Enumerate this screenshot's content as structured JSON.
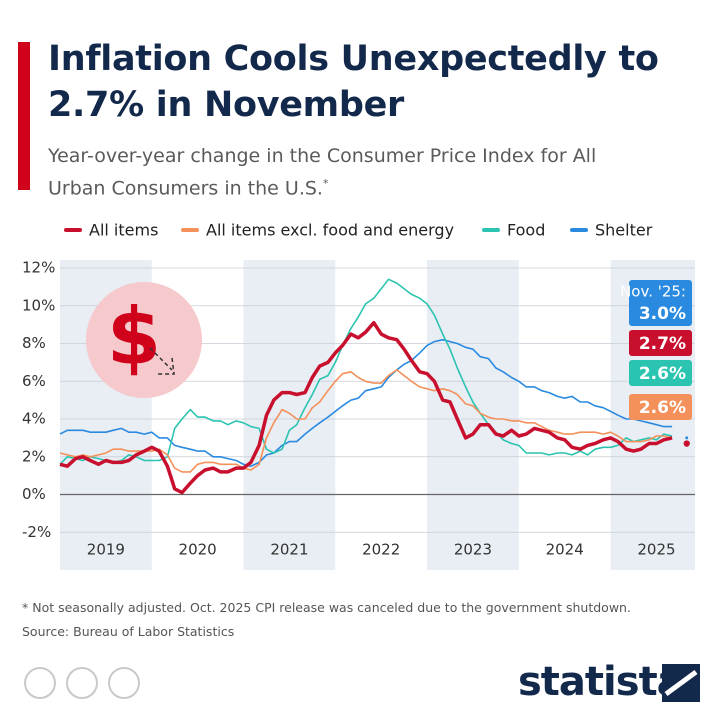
{
  "chart_data": {
    "type": "line",
    "title": "Inflation Cools Unexpectedly to 2.7% in November",
    "subtitle": "Year-over-year change in the Consumer Price Index for All Urban Consumers in the U.S.",
    "subtitle_note": "*",
    "annotation": "Nov. '25:",
    "footnote": "* Not seasonally adjusted. Oct. 2025 CPI release was canceled due to the government shutdown.",
    "source": "Source: Bureau of Labor Statistics",
    "brand": "statista",
    "xlim": [
      2019,
      2025.92
    ],
    "ylim": [
      -4,
      12
    ],
    "yticks": [
      {
        "value": -2,
        "label": "-2%"
      },
      {
        "value": 0,
        "label": "0%"
      },
      {
        "value": 2,
        "label": "2%"
      },
      {
        "value": 4,
        "label": "4%"
      },
      {
        "value": 6,
        "label": "6%"
      },
      {
        "value": 8,
        "label": "8%"
      },
      {
        "value": 10,
        "label": "10%"
      },
      {
        "value": 12,
        "label": "12%"
      }
    ],
    "xticks": [
      {
        "value": 2019.5,
        "label": "2019"
      },
      {
        "value": 2020.5,
        "label": "2020"
      },
      {
        "value": 2021.5,
        "label": "2021"
      },
      {
        "value": 2022.5,
        "label": "2022"
      },
      {
        "value": 2023.5,
        "label": "2023"
      },
      {
        "value": 2024.5,
        "label": "2024"
      },
      {
        "value": 2025.5,
        "label": "2025"
      }
    ],
    "grid": true,
    "legend": "top",
    "x": [
      2019,
      2019.08,
      2019.17,
      2019.25,
      2019.33,
      2019.42,
      2019.5,
      2019.58,
      2019.67,
      2019.75,
      2019.83,
      2019.92,
      2020,
      2020.08,
      2020.17,
      2020.25,
      2020.33,
      2020.42,
      2020.5,
      2020.58,
      2020.67,
      2020.75,
      2020.83,
      2020.92,
      2021,
      2021.08,
      2021.17,
      2021.25,
      2021.33,
      2021.42,
      2021.5,
      2021.58,
      2021.67,
      2021.75,
      2021.83,
      2021.92,
      2022,
      2022.08,
      2022.17,
      2022.25,
      2022.33,
      2022.42,
      2022.5,
      2022.58,
      2022.67,
      2022.75,
      2022.83,
      2022.92,
      2023,
      2023.08,
      2023.17,
      2023.25,
      2023.33,
      2023.42,
      2023.5,
      2023.58,
      2023.67,
      2023.75,
      2023.83,
      2023.92,
      2024,
      2024.08,
      2024.17,
      2024.25,
      2024.33,
      2024.42,
      2024.5,
      2024.58,
      2024.67,
      2024.75,
      2024.83,
      2024.92,
      2025,
      2025.08,
      2025.17,
      2025.25,
      2025.33,
      2025.42,
      2025.5,
      2025.58,
      2025.67,
      2025.75,
      2025.83
    ],
    "series": [
      {
        "name": "All items",
        "color": "#c8102e",
        "width": 3.5,
        "values": [
          1.6,
          1.5,
          1.9,
          2.0,
          1.8,
          1.6,
          1.8,
          1.7,
          1.7,
          1.8,
          2.1,
          2.3,
          2.5,
          2.3,
          1.5,
          0.3,
          0.1,
          0.6,
          1.0,
          1.3,
          1.4,
          1.2,
          1.2,
          1.4,
          1.4,
          1.7,
          2.6,
          4.2,
          5.0,
          5.4,
          5.4,
          5.3,
          5.4,
          6.2,
          6.8,
          7.0,
          7.5,
          7.9,
          8.5,
          8.3,
          8.6,
          9.1,
          8.5,
          8.3,
          8.2,
          7.7,
          7.1,
          6.5,
          6.4,
          6.0,
          5.0,
          4.9,
          4.0,
          3.0,
          3.2,
          3.7,
          3.7,
          3.2,
          3.1,
          3.4,
          3.1,
          3.2,
          3.5,
          3.4,
          3.3,
          3.0,
          2.9,
          2.5,
          2.4,
          2.6,
          2.7,
          2.9,
          3.0,
          2.8,
          2.4,
          2.3,
          2.4,
          2.7,
          2.7,
          2.9,
          3.0,
          null,
          2.7
        ],
        "value_labels": [
          null,
          null,
          null,
          null,
          null,
          null,
          null,
          null,
          null,
          null,
          null,
          null,
          null,
          null,
          null,
          null,
          null,
          null,
          null,
          null,
          null,
          null,
          null,
          null,
          null,
          null,
          null,
          null,
          null,
          null,
          null,
          null,
          null,
          null,
          null,
          null,
          null,
          null,
          null,
          null,
          null,
          null,
          null,
          null,
          null,
          null,
          null,
          null,
          null,
          null,
          null,
          null,
          null,
          null,
          null,
          null,
          null,
          null,
          null,
          null,
          null,
          null,
          null,
          null,
          null,
          null,
          null,
          null,
          null,
          null,
          null,
          null,
          null,
          null,
          null,
          null,
          null,
          null,
          null,
          null,
          null,
          null,
          "2.7%"
        ]
      },
      {
        "name": "All items excl. food and energy",
        "color": "#f4915a",
        "width": 1.6,
        "values": [
          2.2,
          2.1,
          2.0,
          2.1,
          2.0,
          2.1,
          2.2,
          2.4,
          2.4,
          2.3,
          2.3,
          2.3,
          2.3,
          2.4,
          2.1,
          1.4,
          1.2,
          1.2,
          1.6,
          1.7,
          1.7,
          1.6,
          1.6,
          1.6,
          1.4,
          1.3,
          1.6,
          3.0,
          3.8,
          4.5,
          4.3,
          4.0,
          4.0,
          4.6,
          4.9,
          5.5,
          6.0,
          6.4,
          6.5,
          6.2,
          6.0,
          5.9,
          5.9,
          6.3,
          6.6,
          6.3,
          6.0,
          5.7,
          5.6,
          5.5,
          5.6,
          5.5,
          5.3,
          4.8,
          4.7,
          4.3,
          4.1,
          4.0,
          4.0,
          3.9,
          3.9,
          3.8,
          3.8,
          3.6,
          3.4,
          3.3,
          3.2,
          3.2,
          3.3,
          3.3,
          3.3,
          3.2,
          3.3,
          3.1,
          2.8,
          2.8,
          2.8,
          2.9,
          3.1,
          3.1,
          3.0,
          null,
          2.6
        ],
        "value_labels": [
          null,
          null,
          null,
          null,
          null,
          null,
          null,
          null,
          null,
          null,
          null,
          null,
          null,
          null,
          null,
          null,
          null,
          null,
          null,
          null,
          null,
          null,
          null,
          null,
          null,
          null,
          null,
          null,
          null,
          null,
          null,
          null,
          null,
          null,
          null,
          null,
          null,
          null,
          null,
          null,
          null,
          null,
          null,
          null,
          null,
          null,
          null,
          null,
          null,
          null,
          null,
          null,
          null,
          null,
          null,
          null,
          null,
          null,
          null,
          null,
          null,
          null,
          null,
          null,
          null,
          null,
          null,
          null,
          null,
          null,
          null,
          null,
          null,
          null,
          null,
          null,
          null,
          null,
          null,
          null,
          null,
          null,
          "2.6%"
        ]
      },
      {
        "name": "Food",
        "color": "#2bc4b0",
        "width": 1.6,
        "values": [
          1.6,
          2.0,
          1.9,
          1.8,
          2.0,
          1.9,
          1.8,
          1.7,
          1.8,
          2.1,
          2.0,
          1.8,
          1.8,
          1.8,
          2.0,
          3.5,
          4.0,
          4.5,
          4.1,
          4.1,
          3.9,
          3.9,
          3.7,
          3.9,
          3.8,
          3.6,
          3.5,
          2.4,
          2.2,
          2.4,
          3.4,
          3.7,
          4.6,
          5.3,
          6.1,
          6.3,
          7.0,
          7.9,
          8.8,
          9.4,
          10.1,
          10.4,
          10.9,
          11.4,
          11.2,
          10.9,
          10.6,
          10.4,
          10.1,
          9.5,
          8.5,
          7.7,
          6.7,
          5.7,
          4.9,
          4.3,
          3.7,
          3.3,
          2.9,
          2.7,
          2.6,
          2.2,
          2.2,
          2.2,
          2.1,
          2.2,
          2.2,
          2.1,
          2.3,
          2.1,
          2.4,
          2.5,
          2.5,
          2.6,
          3.0,
          2.8,
          2.9,
          3.0,
          2.9,
          3.2,
          3.1,
          null,
          2.6
        ],
        "value_labels": [
          null,
          null,
          null,
          null,
          null,
          null,
          null,
          null,
          null,
          null,
          null,
          null,
          null,
          null,
          null,
          null,
          null,
          null,
          null,
          null,
          null,
          null,
          null,
          null,
          null,
          null,
          null,
          null,
          null,
          null,
          null,
          null,
          null,
          null,
          null,
          null,
          null,
          null,
          null,
          null,
          null,
          null,
          null,
          null,
          null,
          null,
          null,
          null,
          null,
          null,
          null,
          null,
          null,
          null,
          null,
          null,
          null,
          null,
          null,
          null,
          null,
          null,
          null,
          null,
          null,
          null,
          null,
          null,
          null,
          null,
          null,
          null,
          null,
          null,
          null,
          null,
          null,
          null,
          null,
          null,
          null,
          null,
          "2.6%"
        ]
      },
      {
        "name": "Shelter",
        "color": "#2a8ae0",
        "width": 1.6,
        "values": [
          3.2,
          3.4,
          3.4,
          3.4,
          3.3,
          3.3,
          3.3,
          3.4,
          3.5,
          3.3,
          3.3,
          3.2,
          3.3,
          3.0,
          3.0,
          2.6,
          2.5,
          2.4,
          2.3,
          2.3,
          2.0,
          2.0,
          1.9,
          1.8,
          1.6,
          1.5,
          1.7,
          2.1,
          2.2,
          2.6,
          2.8,
          2.8,
          3.2,
          3.5,
          3.8,
          4.1,
          4.4,
          4.7,
          5.0,
          5.1,
          5.5,
          5.6,
          5.7,
          6.2,
          6.6,
          6.9,
          7.1,
          7.5,
          7.9,
          8.1,
          8.2,
          8.1,
          8.0,
          7.8,
          7.7,
          7.3,
          7.2,
          6.7,
          6.5,
          6.2,
          6.0,
          5.7,
          5.7,
          5.5,
          5.4,
          5.2,
          5.1,
          5.2,
          4.9,
          4.9,
          4.7,
          4.6,
          4.4,
          4.2,
          4.0,
          4.0,
          3.9,
          3.8,
          3.7,
          3.6,
          3.6,
          null,
          3.0
        ],
        "value_labels": [
          null,
          null,
          null,
          null,
          null,
          null,
          null,
          null,
          null,
          null,
          null,
          null,
          null,
          null,
          null,
          null,
          null,
          null,
          null,
          null,
          null,
          null,
          null,
          null,
          null,
          null,
          null,
          null,
          null,
          null,
          null,
          null,
          null,
          null,
          null,
          null,
          null,
          null,
          null,
          null,
          null,
          null,
          null,
          null,
          null,
          null,
          null,
          null,
          null,
          null,
          null,
          null,
          null,
          null,
          null,
          null,
          null,
          null,
          null,
          null,
          null,
          null,
          null,
          null,
          null,
          null,
          null,
          null,
          null,
          null,
          null,
          null,
          null,
          null,
          null,
          null,
          null,
          null,
          null,
          null,
          null,
          null,
          "3.0%"
        ]
      }
    ]
  }
}
